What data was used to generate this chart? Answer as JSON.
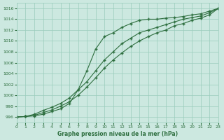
{
  "title": "Graphe pression niveau de la mer (hPa)",
  "background_color": "#cce8e0",
  "grid_color": "#99ccbb",
  "line_color": "#2d6e3e",
  "xlim": [
    0,
    23
  ],
  "ylim": [
    995,
    1017
  ],
  "xticks": [
    0,
    1,
    2,
    3,
    4,
    5,
    6,
    7,
    8,
    9,
    10,
    11,
    12,
    13,
    14,
    15,
    16,
    17,
    18,
    19,
    20,
    21,
    22,
    23
  ],
  "yticks": [
    996,
    998,
    1000,
    1002,
    1004,
    1006,
    1008,
    1010,
    1012,
    1014,
    1016
  ],
  "series1_x": [
    0,
    1,
    2,
    3,
    4,
    5,
    6,
    7,
    8,
    9,
    10,
    11,
    12,
    13,
    14,
    15,
    16,
    17,
    18,
    19,
    20,
    21,
    22,
    23
  ],
  "series1": [
    996.0,
    996.1,
    996.2,
    996.5,
    997.0,
    997.5,
    998.5,
    1001.0,
    1004.5,
    1008.5,
    1010.8,
    1011.5,
    1012.5,
    1013.2,
    1013.8,
    1014.0,
    1014.0,
    1014.2,
    1014.3,
    1014.5,
    1014.8,
    1015.0,
    1015.5,
    1016.0
  ],
  "series2_x": [
    0,
    1,
    2,
    3,
    4,
    5,
    6,
    7,
    8,
    9,
    10,
    11,
    12,
    13,
    14,
    15,
    16,
    17,
    18,
    19,
    20,
    21,
    22,
    23
  ],
  "series2": [
    996.0,
    996.1,
    996.5,
    997.2,
    997.8,
    998.5,
    999.5,
    1001.0,
    1002.5,
    1004.5,
    1006.5,
    1008.0,
    1009.5,
    1010.5,
    1011.5,
    1012.0,
    1012.5,
    1013.0,
    1013.5,
    1014.0,
    1014.3,
    1014.6,
    1015.2,
    1016.0
  ],
  "series3_x": [
    0,
    1,
    2,
    3,
    4,
    5,
    6,
    7,
    8,
    9,
    10,
    11,
    12,
    13,
    14,
    15,
    16,
    17,
    18,
    19,
    20,
    21,
    22,
    23
  ],
  "series3": [
    996.0,
    996.1,
    996.3,
    996.8,
    997.3,
    998.0,
    998.8,
    1000.0,
    1001.5,
    1003.2,
    1005.0,
    1006.5,
    1007.8,
    1009.0,
    1010.0,
    1010.8,
    1011.5,
    1012.0,
    1012.8,
    1013.2,
    1013.8,
    1014.2,
    1014.8,
    1016.0
  ]
}
